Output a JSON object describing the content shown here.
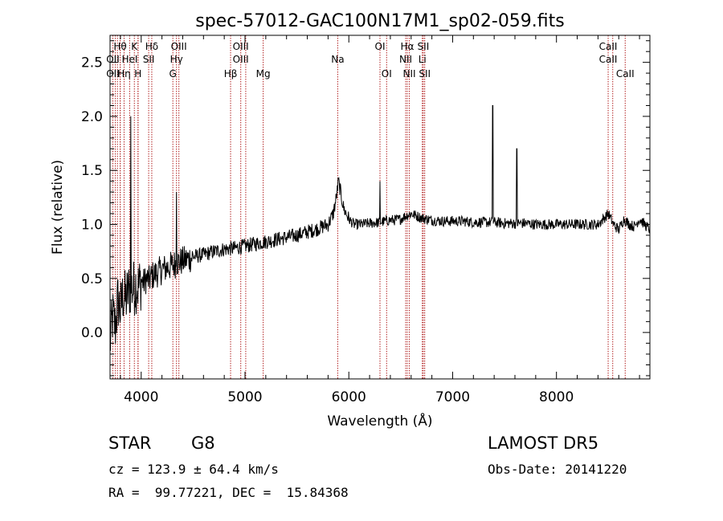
{
  "chart_data": {
    "type": "line",
    "title": "spec-57012-GAC100N17M1_sp02-059.fits",
    "xlabel": "Wavelength (Å)",
    "ylabel": "Flux (relative)",
    "xlim": [
      3700,
      8900
    ],
    "ylim": [
      -0.43,
      2.75
    ],
    "xticks": [
      4000,
      5000,
      6000,
      7000,
      8000
    ],
    "xtick_labels": [
      "4000",
      "5000",
      "6000",
      "7000",
      "8000"
    ],
    "yticks": [
      0.0,
      0.5,
      1.0,
      1.5,
      2.0,
      2.5
    ],
    "ytick_labels": [
      "0.0",
      "0.5",
      "1.0",
      "1.5",
      "2.0",
      "2.5"
    ],
    "grid": false,
    "line_color": "#000000",
    "marker_color": "#b22222",
    "lines": [
      {
        "label": "Hθ",
        "wave": 3797,
        "row": 0
      },
      {
        "label": "OII",
        "wave": 3727,
        "row": 1
      },
      {
        "label": "HeI",
        "wave": 3889,
        "row": 1
      },
      {
        "label": "OII",
        "wave": 3727,
        "row": 2
      },
      {
        "label": "Hη",
        "wave": 3835,
        "row": 2
      },
      {
        "label": "K",
        "wave": 3934,
        "row": 0
      },
      {
        "label": "H",
        "wave": 3969,
        "row": 2
      },
      {
        "label": "Hδ",
        "wave": 4102,
        "row": 0
      },
      {
        "label": "SII",
        "wave": 4072,
        "row": 1
      },
      {
        "label": "OIII",
        "wave": 4363,
        "row": 0
      },
      {
        "label": "Hγ",
        "wave": 4340,
        "row": 1
      },
      {
        "label": "G",
        "wave": 4305,
        "row": 2
      },
      {
        "label": "OIII",
        "wave": 4959,
        "row": 0
      },
      {
        "label": "OIII",
        "wave": 4959,
        "row": 1
      },
      {
        "label": "Hβ",
        "wave": 4861,
        "row": 2
      },
      {
        "label": "Mg",
        "wave": 5175,
        "row": 2
      },
      {
        "label": "Na",
        "wave": 5893,
        "row": 1
      },
      {
        "label": "OI",
        "wave": 6300,
        "row": 0
      },
      {
        "label": "OI",
        "wave": 6364,
        "row": 2
      },
      {
        "label": "Hα",
        "wave": 6563,
        "row": 0
      },
      {
        "label": "NII",
        "wave": 6548,
        "row": 1
      },
      {
        "label": "NII",
        "wave": 6583,
        "row": 2
      },
      {
        "label": "SII",
        "wave": 6717,
        "row": 0
      },
      {
        "label": "Li",
        "wave": 6708,
        "row": 1
      },
      {
        "label": "SII",
        "wave": 6731,
        "row": 2
      },
      {
        "label": "CaII",
        "wave": 8498,
        "row": 0
      },
      {
        "label": "CaII",
        "wave": 8498,
        "row": 1
      },
      {
        "label": "CaII",
        "wave": 8662,
        "row": 2
      }
    ],
    "extra_marker_waves": [
      3750,
      3771,
      3798,
      3970,
      4102,
      5007,
      6717,
      8542
    ],
    "series": [
      {
        "x": [
          3700,
          3725,
          3750,
          3775,
          3800,
          3825,
          3850,
          3875,
          3900,
          3925,
          3950,
          3975,
          4000,
          4025,
          4050,
          4075,
          4100,
          4150,
          4200,
          4250,
          4300,
          4350,
          4400,
          4450,
          4500,
          4600,
          4700,
          4800,
          4900,
          5000,
          5100,
          5200,
          5300,
          5400,
          5500,
          5600,
          5700,
          5800,
          5850,
          5880,
          5900,
          5920,
          5950,
          6000,
          6050,
          6100,
          6200,
          6300,
          6350,
          6400,
          6450,
          6500,
          6550,
          6600,
          6650,
          6700,
          6750,
          6800,
          6900,
          7000,
          7100,
          7200,
          7300,
          7400,
          7500,
          7600,
          7700,
          7800,
          7900,
          8000,
          8100,
          8200,
          8300,
          8400,
          8450,
          8500,
          8550,
          8600,
          8650,
          8700,
          8750,
          8800,
          8850,
          8900
        ],
        "y": [
          -0.1,
          0.15,
          0.05,
          0.3,
          0.2,
          0.35,
          0.3,
          0.38,
          0.42,
          0.4,
          0.45,
          0.42,
          0.48,
          0.46,
          0.5,
          0.48,
          0.52,
          0.55,
          0.58,
          0.6,
          0.62,
          0.65,
          0.66,
          0.68,
          0.7,
          0.72,
          0.75,
          0.77,
          0.78,
          0.8,
          0.82,
          0.84,
          0.86,
          0.88,
          0.9,
          0.93,
          0.96,
          1.0,
          1.1,
          1.25,
          1.4,
          1.3,
          1.15,
          1.05,
          1.0,
          1.0,
          1.01,
          1.02,
          1.03,
          1.04,
          1.04,
          1.05,
          1.08,
          1.1,
          1.08,
          1.06,
          1.05,
          1.04,
          1.03,
          1.03,
          1.03,
          1.02,
          1.02,
          1.02,
          1.01,
          1.01,
          1.01,
          1.0,
          1.0,
          1.0,
          1.0,
          1.0,
          1.0,
          1.0,
          1.05,
          1.1,
          1.0,
          0.95,
          1.05,
          1.0,
          0.98,
          1.05,
          1.0,
          0.95
        ]
      }
    ],
    "spikes": [
      {
        "x": 3900,
        "y": 2.0
      },
      {
        "x": 4340,
        "y": 1.3
      },
      {
        "x": 6300,
        "y": 1.4
      },
      {
        "x": 7386,
        "y": 2.1
      },
      {
        "x": 7618,
        "y": 1.7
      }
    ]
  },
  "info": {
    "object_class": "STAR",
    "subclass": "G8",
    "survey": "LAMOST DR5",
    "velocity": "cz = 123.9 ± 64.4 km/s",
    "obs_date": "Obs-Date: 20141220",
    "coords": "RA =  99.77221, DEC =  15.84368"
  }
}
